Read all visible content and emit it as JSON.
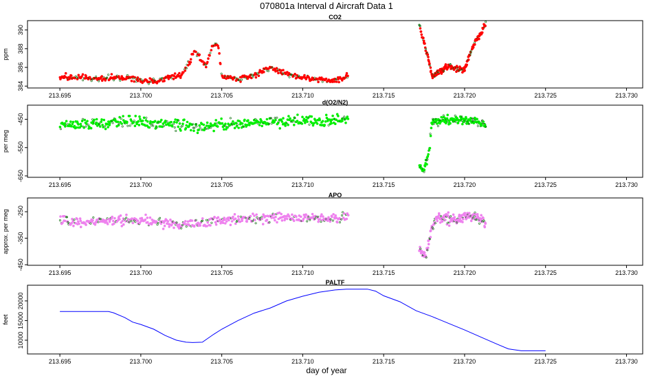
{
  "page": {
    "title": "070801a   Interval d Aircraft Data 1",
    "xlabel": "day of year"
  },
  "colors": {
    "co2": "#ff0000",
    "o2n2": "#00ee00",
    "apo": "#ee82ee",
    "paltf": "#0000ff",
    "secondary": "#006400"
  },
  "chart_data": [
    {
      "type": "scatter",
      "title": "CO2",
      "ylabel": "ppm",
      "xlabel": "",
      "xlim": [
        213.693,
        213.731
      ],
      "ylim": [
        383.8,
        391.0
      ],
      "xticks": [
        213.695,
        213.7,
        213.705,
        213.71,
        213.715,
        213.72,
        213.725,
        213.73
      ],
      "xtick_labels": [
        "213.695",
        "213.700",
        "213.705",
        "213.710",
        "213.715",
        "213.720",
        "213.725",
        "213.730"
      ],
      "yticks": [
        384,
        386,
        388,
        390
      ],
      "ytick_labels": [
        "384",
        "386",
        "388",
        "390"
      ],
      "segments": [
        {
          "x": [
            213.695,
            213.697,
            213.699,
            213.7,
            213.701,
            213.702,
            213.7025,
            213.703,
            213.7033,
            213.7036,
            213.704,
            213.7045,
            213.7048,
            213.705,
            213.706,
            213.707,
            213.708,
            213.709,
            213.71,
            213.711,
            213.712,
            213.7128
          ],
          "y": [
            385.0,
            384.8,
            384.9,
            384.6,
            384.5,
            385.1,
            385.2,
            386.5,
            387.8,
            387.2,
            386.2,
            388.6,
            388.3,
            385.0,
            384.8,
            385.1,
            386.0,
            385.3,
            384.9,
            384.7,
            384.6,
            385.1
          ],
          "jitter": 0.3,
          "n": 420
        },
        {
          "x": [
            213.7172,
            213.7176,
            213.718,
            213.7185,
            213.719,
            213.7195,
            213.72,
            213.7203,
            213.7207,
            213.721,
            213.7213
          ],
          "y": [
            390.5,
            388.0,
            385.0,
            385.6,
            386.2,
            385.8,
            385.7,
            387.3,
            389.0,
            389.6,
            390.7
          ],
          "jitter": 0.3,
          "n": 180
        }
      ]
    },
    {
      "type": "scatter",
      "title": "d(O2/N2)",
      "ylabel": "per meg",
      "xlabel": "",
      "xlim": [
        213.693,
        213.731
      ],
      "ylim": [
        -655,
        -400
      ],
      "xticks": [
        213.695,
        213.7,
        213.705,
        213.71,
        213.715,
        213.72,
        213.725,
        213.73
      ],
      "xtick_labels": [
        "213.695",
        "213.700",
        "213.705",
        "213.710",
        "213.715",
        "213.720",
        "213.725",
        "213.730"
      ],
      "yticks": [
        -650,
        -550,
        -450
      ],
      "ytick_labels": [
        "-650",
        "-550",
        "-450"
      ],
      "segments": [
        {
          "x": [
            213.695,
            213.698,
            213.6995,
            213.701,
            213.7025,
            213.704,
            213.705,
            213.707,
            213.709,
            213.711,
            213.7128
          ],
          "y": [
            -470,
            -465,
            -455,
            -465,
            -472,
            -478,
            -470,
            -462,
            -455,
            -458,
            -452
          ],
          "jitter": 18,
          "n": 420
        },
        {
          "x": [
            213.7172,
            213.7175,
            213.7178,
            213.718,
            213.7185,
            213.719,
            213.7195,
            213.72,
            213.7205,
            213.721,
            213.7213
          ],
          "y": [
            -610,
            -635,
            -560,
            -455,
            -452,
            -455,
            -450,
            -452,
            -455,
            -462,
            -470
          ],
          "jitter": 16,
          "n": 170
        }
      ]
    },
    {
      "type": "scatter",
      "title": "APO",
      "ylabel": "approx. per meg",
      "xlabel": "",
      "xlim": [
        213.693,
        213.731
      ],
      "ylim": [
        -452,
        -198
      ],
      "xticks": [
        213.695,
        213.7,
        213.705,
        213.71,
        213.715,
        213.72,
        213.725,
        213.73
      ],
      "xtick_labels": [
        "213.695",
        "213.700",
        "213.705",
        "213.710",
        "213.715",
        "213.720",
        "213.725",
        "213.730"
      ],
      "yticks": [
        -450,
        -350,
        -250
      ],
      "ytick_labels": [
        "-450",
        "-350",
        "-250"
      ],
      "segments": [
        {
          "x": [
            213.695,
            213.698,
            213.6995,
            213.701,
            213.7025,
            213.704,
            213.705,
            213.707,
            213.709,
            213.711,
            213.7128
          ],
          "y": [
            -290,
            -285,
            -280,
            -290,
            -300,
            -292,
            -282,
            -275,
            -272,
            -278,
            -270
          ],
          "jitter": 18,
          "n": 420
        },
        {
          "x": [
            213.7172,
            213.7176,
            213.718,
            213.7185,
            213.719,
            213.7195,
            213.72,
            213.7205,
            213.721,
            213.7213
          ],
          "y": [
            -390,
            -420,
            -300,
            -275,
            -278,
            -280,
            -272,
            -262,
            -280,
            -290
          ],
          "jitter": 18,
          "n": 170
        }
      ]
    },
    {
      "type": "line",
      "title": "PALTF",
      "ylabel": "feet",
      "xlabel": "day of year",
      "xlim": [
        213.693,
        213.731
      ],
      "ylim": [
        6500,
        24000
      ],
      "xticks": [
        213.695,
        213.7,
        213.705,
        213.71,
        213.715,
        213.72,
        213.725,
        213.73
      ],
      "xtick_labels": [
        "213.695",
        "213.700",
        "213.705",
        "213.710",
        "213.715",
        "213.720",
        "213.725",
        "213.730"
      ],
      "yticks": [
        10000,
        15000,
        20000
      ],
      "ytick_labels": [
        "10000",
        "15000",
        "20000"
      ],
      "x": [
        213.695,
        213.6965,
        213.698,
        213.6983,
        213.699,
        213.6995,
        213.7,
        213.7008,
        213.7015,
        213.7022,
        213.7028,
        213.7032,
        213.7038,
        213.7045,
        213.705,
        213.706,
        213.707,
        213.708,
        213.709,
        213.71,
        213.711,
        213.712,
        213.7127,
        213.713,
        213.7135,
        213.714,
        213.7145,
        213.715,
        213.716,
        213.717,
        213.718,
        213.719,
        213.72,
        213.721,
        213.722,
        213.7227,
        213.7235,
        213.725
      ],
      "y": [
        17300,
        17300,
        17300,
        17000,
        15800,
        14600,
        14000,
        12800,
        11200,
        10000,
        9500,
        9400,
        9500,
        11500,
        12800,
        15000,
        16900,
        18200,
        20000,
        21200,
        22200,
        22800,
        23000,
        23000,
        23000,
        23000,
        22500,
        21300,
        19800,
        17500,
        16000,
        14300,
        12600,
        10800,
        9000,
        7800,
        7300,
        7300
      ]
    }
  ]
}
